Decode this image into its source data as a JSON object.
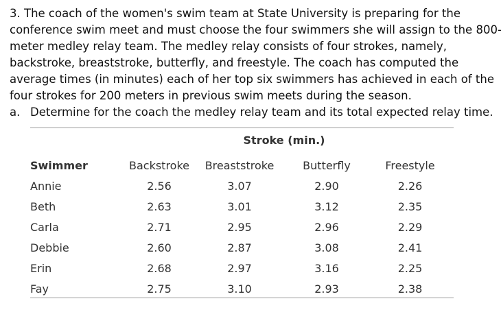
{
  "problem": {
    "lines": [
      "3. The coach of the women's swim team at State University is preparing for the",
      "conference swim meet and must choose the four swimmers she will assign to the 800-",
      "meter medley relay team. The medley relay consists of four strokes, namely,",
      "backstroke, breaststroke, butterfly, and freestyle. The coach has computed the",
      "average times (in minutes) each of her top six swimmers has achieved in each of the",
      "four strokes for 200 meters in previous swim meets during the season."
    ],
    "part_a": {
      "marker": "a.",
      "text": "Determine for the coach the medley relay team and its total expected relay time."
    }
  },
  "table": {
    "super_header": "Stroke (min.)",
    "headers": [
      "Swimmer",
      "Backstroke",
      "Breaststroke",
      "Butterfly",
      "Freestyle"
    ],
    "rows": [
      [
        "Annie",
        "2.56",
        "3.07",
        "2.90",
        "2.26"
      ],
      [
        "Beth",
        "2.63",
        "3.01",
        "3.12",
        "2.35"
      ],
      [
        "Carla",
        "2.71",
        "2.95",
        "2.96",
        "2.29"
      ],
      [
        "Debbie",
        "2.60",
        "2.87",
        "3.08",
        "2.41"
      ],
      [
        "Erin",
        "2.68",
        "2.97",
        "3.16",
        "2.25"
      ],
      [
        "Fay",
        "2.75",
        "3.10",
        "2.93",
        "2.38"
      ]
    ]
  }
}
